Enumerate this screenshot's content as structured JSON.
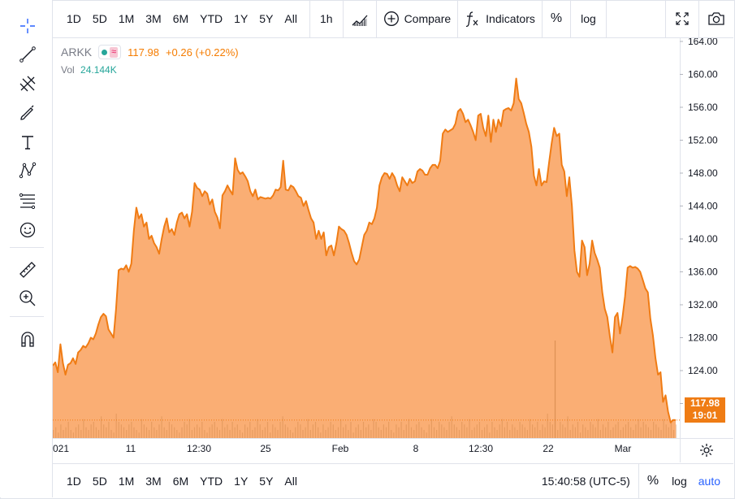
{
  "top_bar": {
    "intervals": [
      "1D",
      "5D",
      "1M",
      "3M",
      "6M",
      "YTD",
      "1Y",
      "5Y",
      "All"
    ],
    "interval": "1h",
    "compare": "Compare",
    "indicators": "Indicators",
    "percent": "%",
    "log": "log"
  },
  "legend": {
    "symbol": "ARKK",
    "last": "117.98",
    "change": "+0.26 (+0.22%)",
    "vol_label": "Vol",
    "vol_value": "24.144K"
  },
  "price_badge": {
    "price": "117.98",
    "countdown": "19:01"
  },
  "bottom_bar": {
    "ranges": [
      "1D",
      "5D",
      "1M",
      "3M",
      "6M",
      "YTD",
      "1Y",
      "5Y",
      "All"
    ],
    "time": "15:40:58 (UTC-5)",
    "percent": "%",
    "log": "log",
    "auto": "auto"
  },
  "colors": {
    "line": "#f07c14",
    "area": "#f9a05c",
    "accent": "#2962ff",
    "badge": "#ef7c14"
  },
  "icons": [
    "crosshair-icon",
    "trend-line-icon",
    "pitchfork-icon",
    "brush-icon",
    "text-icon",
    "pattern-icon",
    "fib-icon",
    "emoji-icon",
    "ruler-icon",
    "zoom-in-icon",
    "magnet-icon",
    "candles-icon",
    "plus-circle-icon",
    "fx-icon",
    "fullscreen-icon",
    "camera-icon",
    "gear-icon"
  ],
  "chart_data": {
    "type": "area",
    "y_ticks": [
      164,
      160,
      156,
      152,
      148,
      144,
      140,
      136,
      132,
      128,
      124,
      120
    ],
    "y_range": [
      115.8,
      164.4
    ],
    "x_labels": [
      "021",
      "11",
      "12:30",
      "25",
      "Feb",
      "8",
      "12:30",
      "22",
      "Mar"
    ],
    "grid": false,
    "series": [
      {
        "values": [
          124.6,
          125.0,
          123.8,
          127.2,
          124.9,
          123.5,
          124.7,
          124.9,
          125.5,
          124.8,
          126.2,
          126.5,
          127.0,
          126.8,
          127.3,
          128.0,
          127.8,
          128.5,
          129.6,
          130.5,
          130.9,
          130.6,
          129.0,
          128.5,
          128.0,
          131.5,
          136.2,
          136.4,
          136.3,
          136.8,
          136.0,
          137.0,
          141.0,
          143.8,
          142.5,
          143.0,
          141.5,
          142.0,
          140.0,
          140.4,
          139.5,
          139.0,
          138.2,
          140.0,
          141.5,
          142.5,
          140.8,
          141.2,
          140.5,
          142.0,
          143.0,
          143.2,
          142.5,
          143.0,
          141.5,
          143.3,
          146.8,
          146.2,
          146.0,
          145.2,
          145.8,
          145.5,
          144.2,
          144.8,
          143.3,
          142.6,
          141.3,
          145.3,
          145.8,
          146.5,
          145.9,
          145.4,
          149.8,
          148.4,
          147.9,
          148.1,
          147.6,
          147.0,
          145.8,
          145.2,
          146.0,
          144.8,
          145.1,
          145.0,
          144.9,
          145.0,
          144.9,
          145.3,
          146.0,
          145.9,
          146.3,
          149.5,
          146.0,
          145.9,
          146.5,
          146.3,
          145.8,
          145.2,
          145.0,
          144.0,
          144.6,
          143.5,
          142.5,
          142.0,
          140.0,
          141.0,
          140.0,
          140.8,
          138.0,
          139.0,
          139.2,
          138.0,
          139.5,
          141.5,
          141.2,
          141.0,
          140.5,
          139.5,
          138.3,
          137.3,
          136.9,
          137.5,
          139.0,
          140.5,
          141.0,
          142.0,
          141.8,
          142.5,
          143.8,
          146.5,
          147.5,
          148.0,
          147.9,
          147.3,
          148.0,
          147.5,
          146.5,
          145.8,
          147.5,
          147.0,
          146.5,
          147.3,
          146.8,
          147.0,
          148.2,
          148.5,
          148.3,
          147.8,
          147.8,
          148.6,
          149.0,
          149.0,
          148.6,
          149.5,
          152.8,
          153.3,
          153.0,
          153.2,
          153.4,
          154.0,
          155.5,
          155.8,
          155.2,
          154.2,
          154.5,
          153.8,
          153.0,
          152.0,
          155.0,
          155.2,
          153.5,
          152.5,
          155.0,
          151.8,
          154.5,
          153.0,
          154.5,
          153.7,
          155.6,
          155.8,
          155.9,
          155.6,
          156.5,
          159.5,
          157.0,
          156.5,
          155.3,
          154.0,
          153.0,
          151.2,
          147.7,
          146.5,
          148.5,
          146.5,
          147.0,
          146.9,
          149.3,
          151.6,
          153.5,
          152.5,
          152.8,
          149.0,
          148.2,
          145.2,
          147.5,
          144.0,
          138.6,
          136.0,
          135.4,
          139.8,
          139.0,
          135.6,
          137.0,
          139.8,
          138.3,
          137.5,
          136.5,
          133.5,
          131.5,
          130.5,
          128.2,
          126.2,
          130.5,
          131.0,
          128.5,
          130.5,
          133.0,
          136.5,
          136.7,
          136.5,
          136.6,
          136.4,
          136.0,
          135.0,
          134.0,
          133.5,
          130.3,
          128.3,
          125.5,
          123.5,
          123.8,
          120.2,
          121.0,
          119.0,
          117.7,
          118.0,
          117.98
        ]
      }
    ],
    "volume": [
      3,
      4,
      2,
      5,
      3,
      4,
      6,
      3,
      2,
      4,
      5,
      3,
      7,
      4,
      3,
      5,
      6,
      4,
      3,
      8,
      5,
      4,
      6,
      3,
      2,
      9,
      6,
      5,
      4,
      3,
      5,
      6,
      4,
      3,
      2,
      7,
      5,
      4,
      3,
      6,
      4,
      3,
      5,
      8,
      4,
      3,
      6,
      5,
      4,
      3,
      2,
      4,
      6,
      5,
      7,
      3,
      4,
      5,
      4,
      6,
      3,
      2,
      4,
      5,
      6,
      4,
      3,
      7,
      4,
      5,
      3,
      6,
      4,
      5,
      3,
      2,
      5,
      4,
      6,
      3,
      4,
      7,
      5,
      3,
      4,
      6,
      2,
      5,
      4,
      3,
      6,
      8,
      5,
      4,
      3,
      2,
      4,
      6,
      5,
      3,
      4,
      7,
      3,
      5,
      6,
      4,
      2,
      5,
      3,
      4,
      6,
      5,
      3,
      4,
      7,
      4,
      5,
      3,
      6,
      2,
      4,
      5,
      3,
      6,
      4,
      5,
      3,
      7,
      6,
      4,
      3,
      5,
      4,
      6,
      3,
      2,
      5,
      4,
      6,
      3,
      5,
      7,
      4,
      3,
      5,
      6,
      4,
      3,
      2,
      5,
      7,
      4,
      3,
      6,
      5,
      4,
      3,
      6,
      8,
      5,
      4,
      3,
      6,
      5,
      4,
      7,
      3,
      4,
      5,
      6,
      3,
      4,
      5,
      2,
      6,
      4,
      3,
      5,
      7,
      4,
      6,
      3,
      5,
      4,
      3,
      6,
      5,
      4,
      3,
      7,
      5,
      4,
      6,
      3,
      5,
      4,
      9,
      6,
      5,
      4,
      3,
      6,
      5,
      4,
      8,
      3,
      5,
      4,
      6,
      2,
      5,
      4,
      3,
      6,
      5,
      4,
      7,
      3,
      5,
      4,
      6,
      3,
      4,
      5,
      6,
      3,
      4,
      5,
      6,
      4,
      3,
      5,
      7,
      4,
      6,
      5,
      4,
      3,
      6,
      5,
      4,
      3,
      7,
      5,
      4,
      6,
      3,
      5
    ],
    "volume_spike_index": 199
  }
}
